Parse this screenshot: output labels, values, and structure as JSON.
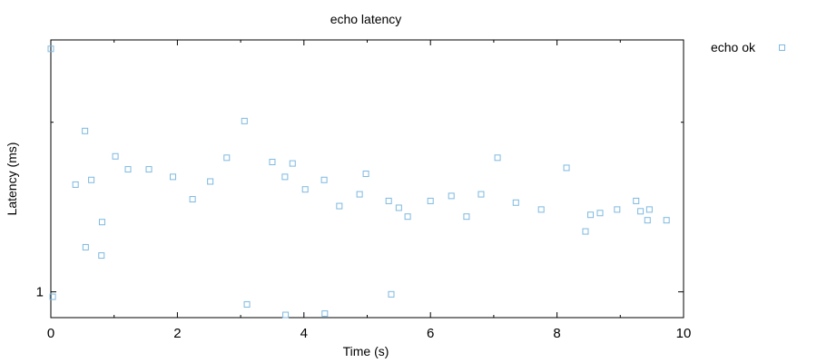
{
  "chart_data": {
    "type": "scatter",
    "title": "echo latency",
    "xlabel": "Time (s)",
    "ylabel": "Latency (ms)",
    "xlim": [
      0,
      10
    ],
    "ylim": [
      0.9,
      2.8
    ],
    "yscale": "log",
    "xticks": [
      "0",
      "2",
      "4",
      "6",
      "8",
      "10"
    ],
    "yticks": [
      "1"
    ],
    "grid": false,
    "legend": "top-right outside",
    "series": [
      {
        "name": "echo ok",
        "color": "#7db9e0",
        "marker": "hollow-square",
        "points": [
          [
            0.0,
            2.7
          ],
          [
            0.03,
            0.98
          ],
          [
            0.39,
            1.55
          ],
          [
            0.54,
            1.93
          ],
          [
            0.55,
            1.2
          ],
          [
            0.64,
            1.58
          ],
          [
            0.8,
            1.16
          ],
          [
            0.81,
            1.33
          ],
          [
            1.02,
            1.74
          ],
          [
            1.22,
            1.65
          ],
          [
            1.55,
            1.65
          ],
          [
            1.93,
            1.6
          ],
          [
            2.24,
            1.46
          ],
          [
            2.52,
            1.57
          ],
          [
            2.78,
            1.73
          ],
          [
            3.06,
            2.01
          ],
          [
            3.1,
            0.95
          ],
          [
            3.5,
            1.7
          ],
          [
            3.7,
            1.6
          ],
          [
            3.71,
            0.91
          ],
          [
            3.82,
            1.69
          ],
          [
            4.02,
            1.52
          ],
          [
            4.32,
            1.58
          ],
          [
            4.33,
            0.915
          ],
          [
            4.56,
            1.42
          ],
          [
            4.88,
            1.49
          ],
          [
            4.98,
            1.62
          ],
          [
            5.34,
            1.45
          ],
          [
            5.38,
            0.99
          ],
          [
            5.5,
            1.41
          ],
          [
            5.64,
            1.36
          ],
          [
            6.0,
            1.45
          ],
          [
            6.33,
            1.48
          ],
          [
            6.57,
            1.36
          ],
          [
            6.8,
            1.49
          ],
          [
            7.06,
            1.73
          ],
          [
            7.35,
            1.44
          ],
          [
            7.75,
            1.4
          ],
          [
            8.15,
            1.66
          ],
          [
            8.45,
            1.28
          ],
          [
            8.53,
            1.37
          ],
          [
            8.68,
            1.38
          ],
          [
            8.95,
            1.4
          ],
          [
            9.25,
            1.45
          ],
          [
            9.32,
            1.39
          ],
          [
            9.43,
            1.34
          ],
          [
            9.46,
            1.4
          ],
          [
            9.73,
            1.34
          ]
        ]
      }
    ]
  }
}
